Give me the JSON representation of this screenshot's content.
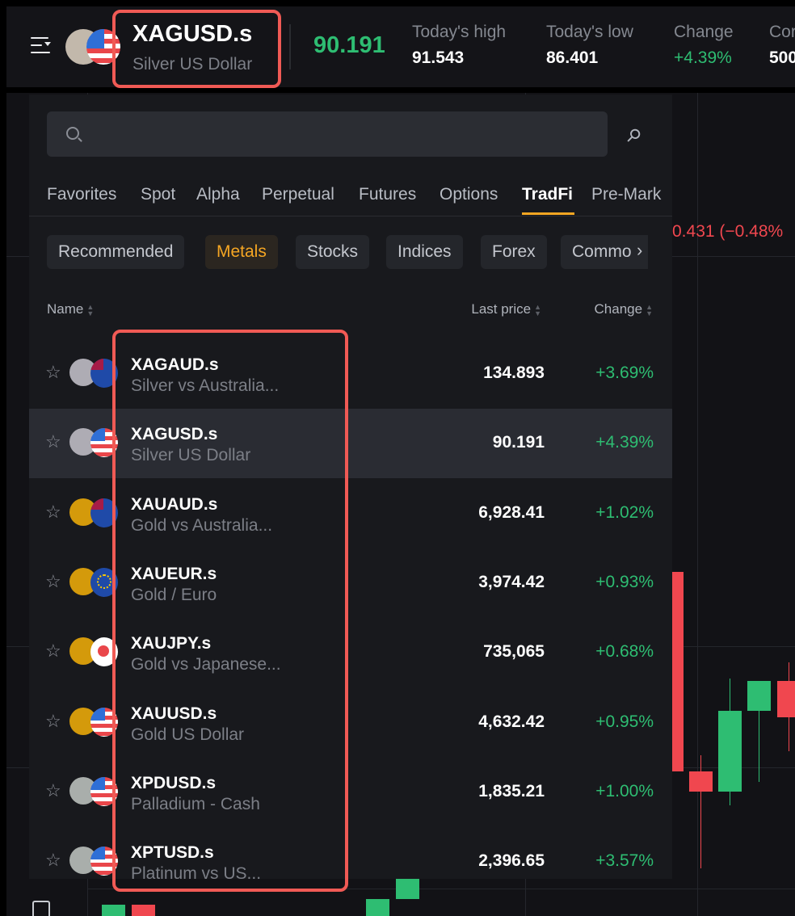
{
  "header": {
    "symbol": "XAGUSD.s",
    "name": "Silver US Dollar",
    "price": "90.191",
    "stats": [
      {
        "label": "Today's high",
        "value": "91.543"
      },
      {
        "label": "Today's low",
        "value": "86.401"
      },
      {
        "label": "Change",
        "value": "+4.39%"
      },
      {
        "label": "Cor",
        "value": "500"
      }
    ]
  },
  "colors": {
    "up": "#2ebd72",
    "down": "#f0474f",
    "accent": "#f5a623",
    "highlight": "#f05a55"
  },
  "chart": {
    "price_change": "0.431 (−0.48%"
  },
  "panel": {
    "search_placeholder": "",
    "tabs": [
      "Favorites",
      "Spot",
      "Alpha",
      "Perpetual",
      "Futures",
      "Options",
      "TradFi",
      "Pre-Mark"
    ],
    "active_tab": "TradFi",
    "chips": [
      "Recommended",
      "Metals",
      "Stocks",
      "Indices",
      "Forex",
      "Commo"
    ],
    "active_chip": "Metals",
    "columns": {
      "name": "Name",
      "last": "Last price",
      "change": "Change"
    },
    "rows": [
      {
        "symbol": "XAGAUD.s",
        "name": "Silver vs Australia...",
        "price": "134.893",
        "change": "+3.69%",
        "metal": "silver",
        "flag": "au"
      },
      {
        "symbol": "XAGUSD.s",
        "name": "Silver US Dollar",
        "price": "90.191",
        "change": "+4.39%",
        "metal": "silver",
        "flag": "us"
      },
      {
        "symbol": "XAUAUD.s",
        "name": "Gold vs Australia...",
        "price": "6,928.41",
        "change": "+1.02%",
        "metal": "gold",
        "flag": "au"
      },
      {
        "symbol": "XAUEUR.s",
        "name": "Gold / Euro",
        "price": "3,974.42",
        "change": "+0.93%",
        "metal": "gold",
        "flag": "eu"
      },
      {
        "symbol": "XAUJPY.s",
        "name": "Gold vs Japanese...",
        "price": "735,065",
        "change": "+0.68%",
        "metal": "gold",
        "flag": "jp"
      },
      {
        "symbol": "XAUUSD.s",
        "name": "Gold US Dollar",
        "price": "4,632.42",
        "change": "+0.95%",
        "metal": "gold",
        "flag": "us"
      },
      {
        "symbol": "XPDUSD.s",
        "name": "Palladium - Cash",
        "price": "1,835.21",
        "change": "+1.00%",
        "metal": "palladium",
        "flag": "us"
      },
      {
        "symbol": "XPTUSD.s",
        "name": "Platinum vs US...",
        "price": "2,396.65",
        "change": "+3.57%",
        "metal": "platinum",
        "flag": "us"
      }
    ]
  }
}
